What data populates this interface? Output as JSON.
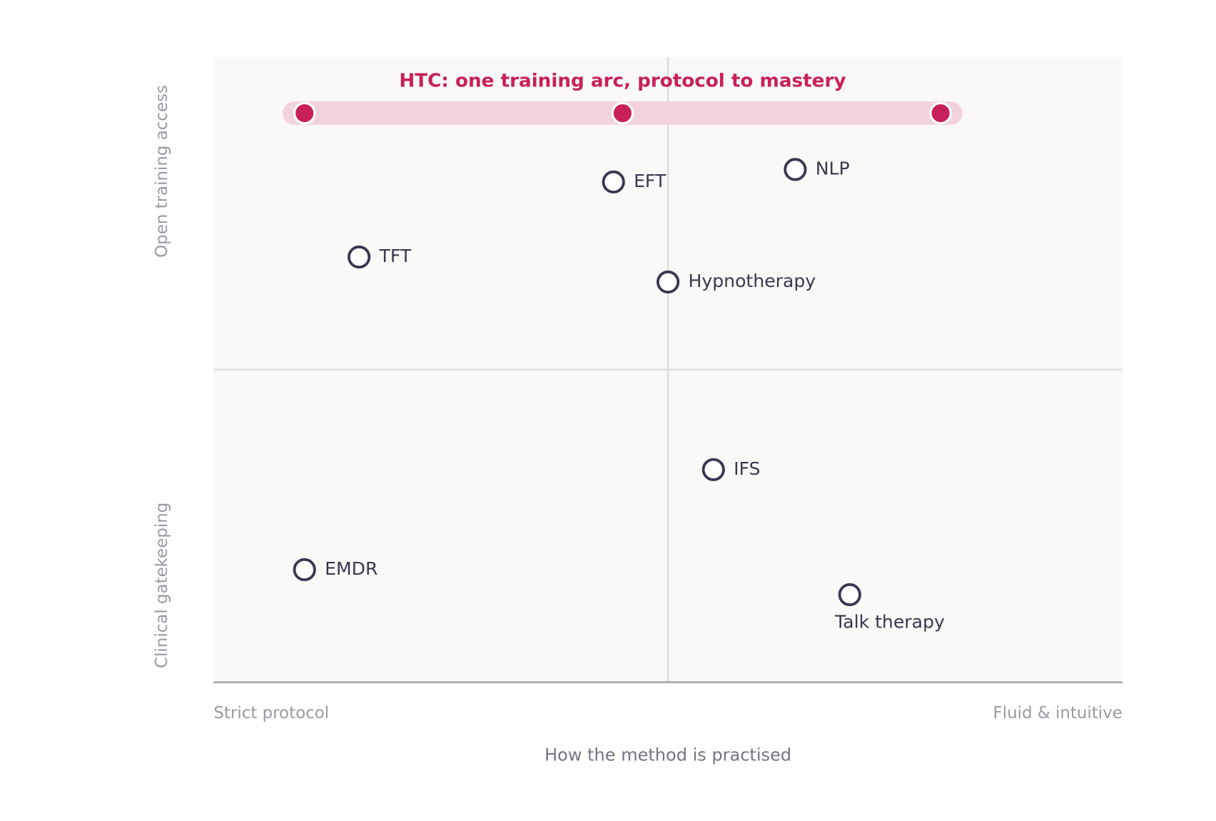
{
  "chart_data": {
    "type": "scatter",
    "xlim": [
      0,
      10
    ],
    "ylim": [
      0,
      10
    ],
    "quadrant_lines": {
      "x": 5,
      "y": 5
    },
    "x_left_label": "Strict protocol",
    "x_right_label": "Fluid & intuitive",
    "x_axis_title": "How the method is practised",
    "y_top_label": "Open training access",
    "y_bottom_label": "Clinical gatekeeping",
    "point_color": "#3d3550",
    "points": [
      {
        "label": "EFT",
        "x": 4.4,
        "y": 8.0,
        "label_position": "right"
      },
      {
        "label": "NLP",
        "x": 6.4,
        "y": 8.2,
        "label_position": "right"
      },
      {
        "label": "TFT",
        "x": 1.6,
        "y": 6.8,
        "label_position": "right"
      },
      {
        "label": "Hypnotherapy",
        "x": 5.0,
        "y": 6.4,
        "label_position": "right"
      },
      {
        "label": "IFS",
        "x": 5.5,
        "y": 3.4,
        "label_position": "right"
      },
      {
        "label": "EMDR",
        "x": 1.0,
        "y": 1.8,
        "label_position": "right"
      },
      {
        "label": "Talk therapy",
        "x": 7.0,
        "y": 1.4,
        "label_position": "below"
      }
    ],
    "htc": {
      "label": "HTC: one training arc, protocol to mastery",
      "color": "#c8205a",
      "band_color": "#f2d3dc",
      "x": [
        1.0,
        4.5,
        8.0
      ],
      "y": [
        9.1,
        9.1,
        9.1
      ]
    }
  }
}
